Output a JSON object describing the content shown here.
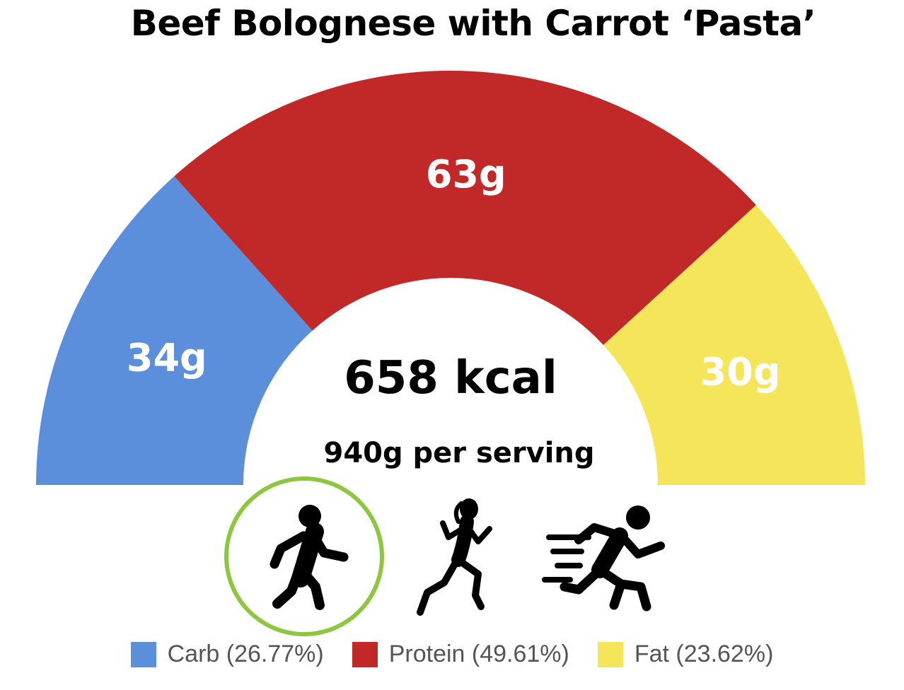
{
  "title": "Beef Bolognese with Carrot ‘Pasta’",
  "center": {
    "kcal_text": "658 kcal",
    "serving_text": "940g per serving"
  },
  "chart_data": {
    "type": "pie",
    "variant": "semi-donut",
    "series": [
      {
        "name": "Carb",
        "grams": 34,
        "label": "34g",
        "percent": 26.77,
        "color": "#5b8fdb"
      },
      {
        "name": "Protein",
        "grams": 63,
        "label": "63g",
        "percent": 49.61,
        "color": "#c12828"
      },
      {
        "name": "Fat",
        "grams": 30,
        "label": "30g",
        "percent": 23.62,
        "color": "#f5e55a"
      }
    ],
    "legend_position": "bottom"
  },
  "legend": [
    {
      "label": "Carb (26.77%)",
      "color": "#5b8fdb"
    },
    {
      "label": "Protein (49.61%)",
      "color": "#c12828"
    },
    {
      "label": "Fat (23.62%)",
      "color": "#f5e55a"
    }
  ],
  "activity_icons": [
    {
      "name": "walking-person-icon",
      "selected": true
    },
    {
      "name": "running-woman-icon",
      "selected": false
    },
    {
      "name": "sprinting-person-icon",
      "selected": false
    }
  ],
  "highlight_color": "#8dc63f"
}
